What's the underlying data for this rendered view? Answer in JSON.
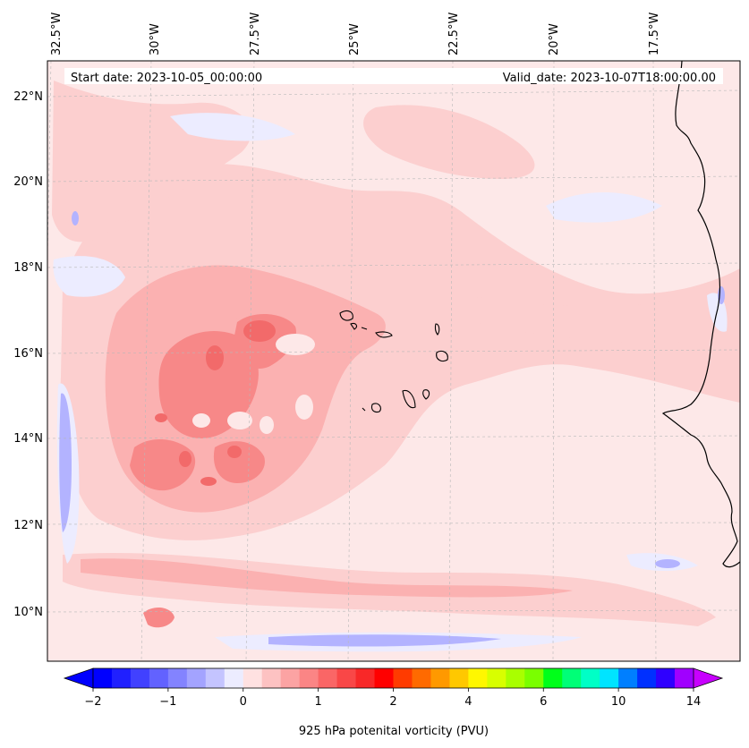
{
  "header": {
    "start_date": "Start date: 2023-10-05_00:00:00",
    "valid_date": "Valid_date: 2023-10-07T18:00:00.00"
  },
  "map": {
    "lon_labels": [
      "32.5°W",
      "30°W",
      "27.5°W",
      "25°W",
      "22.5°W",
      "20°W",
      "17.5°W"
    ],
    "lat_labels": [
      "22°N",
      "20°N",
      "18°N",
      "16°N",
      "14°N",
      "12°N",
      "10°N"
    ],
    "lon_range_deg": [
      -32.8,
      -14.9
    ],
    "lat_range_deg": [
      8.9,
      22.8
    ],
    "colors": {
      "background": "#fde8e8",
      "light_pink": "#fccfcf",
      "mid_pink": "#fbb1b1",
      "red": "#f78888",
      "deep_red": "#f26a6a",
      "light_blue": "#ececff",
      "blue": "#b3b3ff",
      "coast": "#000000"
    }
  },
  "colorbar": {
    "label": "925 hPa potenital vorticity (PVU)",
    "tick_labels": [
      "−2",
      "−1",
      "0",
      "1",
      "2",
      "4",
      "6",
      "10",
      "14"
    ],
    "colors": [
      "#0000ff",
      "#2020ff",
      "#4141ff",
      "#6262ff",
      "#8383ff",
      "#a3a3ff",
      "#c4c4ff",
      "#ececff",
      "#ffe1e1",
      "#fdc2c2",
      "#fca3a3",
      "#fb8585",
      "#fa6666",
      "#f94747",
      "#f82828",
      "#ff0000",
      "#ff3b00",
      "#ff6a00",
      "#ff9900",
      "#ffc800",
      "#fff700",
      "#d8ff00",
      "#a9ff00",
      "#7aff00",
      "#00ff1a",
      "#00ff77",
      "#00ffc6",
      "#00e4ff",
      "#007fff",
      "#0030ff",
      "#2f00ff",
      "#a000ff"
    ],
    "extend_low_color": "#0000ff",
    "extend_high_color": "#c800ff"
  }
}
